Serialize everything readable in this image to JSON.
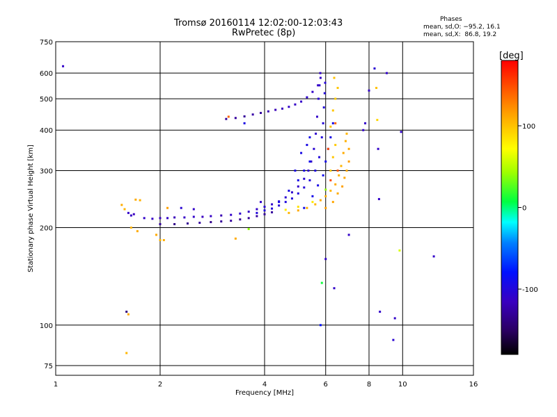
{
  "chart_data": {
    "type": "scatter",
    "title": "Tromsø 20160114 12:02:00-12:03:43",
    "subtitle": "RwPretec (8p)",
    "xlabel": "Frequency [MHz]",
    "ylabel": "Stationary phase Virtual Height [km]",
    "xscale": "log",
    "yscale": "log",
    "xlim": [
      1,
      16
    ],
    "ylim": [
      70,
      750
    ],
    "xticks": [
      1,
      2,
      4,
      6,
      8,
      10,
      16
    ],
    "xtick_labels": [
      "1",
      "2",
      "4",
      "6",
      "8",
      "10",
      "16"
    ],
    "yticks": [
      75,
      100,
      200,
      300,
      400,
      500,
      600,
      750
    ],
    "ytick_labels": [
      "75",
      "100",
      "200",
      "300",
      "400",
      "500",
      "600",
      "750"
    ],
    "grid": true,
    "info": {
      "heading": "Phases",
      "line_o": "mean, sd,O: −95.2, 16.1",
      "line_x": "mean, sd,X:  86.8, 19.2"
    },
    "colorbar": {
      "label": "[deg]",
      "range": [
        -180,
        180
      ],
      "ticks": [
        100,
        0,
        -100
      ],
      "tick_labels": [
        "100",
        "0",
        "-100"
      ]
    },
    "series": [
      {
        "points": [
          [
            1.8,
            214,
            -110
          ],
          [
            1.9,
            213,
            -112
          ],
          [
            2.0,
            214,
            -115
          ],
          [
            2.1,
            214,
            -110
          ],
          [
            2.2,
            215,
            -118
          ],
          [
            2.35,
            215,
            -112
          ],
          [
            2.5,
            216,
            -110
          ],
          [
            2.65,
            216,
            -115
          ],
          [
            2.8,
            217,
            -112
          ],
          [
            3.0,
            218,
            -120
          ],
          [
            3.2,
            219,
            -110
          ],
          [
            3.4,
            221,
            -108
          ],
          [
            3.6,
            224,
            -112
          ],
          [
            3.8,
            228,
            -110
          ],
          [
            4.0,
            232,
            -105
          ],
          [
            4.2,
            236,
            -108
          ],
          [
            4.4,
            241,
            -110
          ],
          [
            4.6,
            248,
            -105
          ],
          [
            4.8,
            257,
            -108
          ],
          [
            5.0,
            268,
            -110
          ],
          [
            5.2,
            283,
            -105
          ],
          [
            5.35,
            300,
            -108
          ],
          [
            5.45,
            320,
            -110
          ],
          [
            5.55,
            350,
            -105
          ],
          [
            5.62,
            390,
            -108
          ],
          [
            5.67,
            440,
            -110
          ],
          [
            5.72,
            500,
            -105
          ],
          [
            5.76,
            550,
            -108
          ],
          [
            5.79,
            600,
            -110
          ],
          [
            2.0,
            205,
            -130
          ],
          [
            2.2,
            205,
            -135
          ],
          [
            2.4,
            206,
            -132
          ],
          [
            2.6,
            207,
            -128
          ],
          [
            2.8,
            208,
            -135
          ],
          [
            3.0,
            209,
            -130
          ],
          [
            3.2,
            210,
            -128
          ],
          [
            3.4,
            212,
            -132
          ],
          [
            3.6,
            214,
            -130
          ],
          [
            3.8,
            217,
            -128
          ],
          [
            4.0,
            220,
            -130
          ],
          [
            4.2,
            223,
            -128
          ],
          [
            3.8,
            222,
            -100
          ],
          [
            4.0,
            226,
            -98
          ],
          [
            4.2,
            229,
            -100
          ],
          [
            4.4,
            234,
            -102
          ],
          [
            4.6,
            240,
            -98
          ],
          [
            4.8,
            246,
            -100
          ],
          [
            5.0,
            255,
            -100
          ],
          [
            5.2,
            266,
            -102
          ],
          [
            5.4,
            280,
            -100
          ],
          [
            5.6,
            300,
            -98
          ],
          [
            5.75,
            330,
            -100
          ],
          [
            5.85,
            380,
            -100
          ],
          [
            5.9,
            420,
            -102
          ],
          [
            5.93,
            470,
            -100
          ],
          [
            5.96,
            520,
            -100
          ],
          [
            5.98,
            560,
            -102
          ],
          [
            3.1,
            433,
            -130
          ],
          [
            3.3,
            436,
            -128
          ],
          [
            3.5,
            441,
            -130
          ],
          [
            3.7,
            447,
            -125
          ],
          [
            3.9,
            452,
            -128
          ],
          [
            4.1,
            457,
            -120
          ],
          [
            4.3,
            462,
            -118
          ],
          [
            4.5,
            466,
            -115
          ],
          [
            4.7,
            472,
            -110
          ],
          [
            4.9,
            480,
            -112
          ],
          [
            5.1,
            490,
            -110
          ],
          [
            5.3,
            505,
            -108
          ],
          [
            5.5,
            525,
            -110
          ],
          [
            5.7,
            550,
            -112
          ],
          [
            5.8,
            580,
            -110
          ],
          [
            4.4,
            240,
            -95
          ],
          [
            4.7,
            260,
            -95
          ],
          [
            5.0,
            280,
            -92
          ],
          [
            5.2,
            300,
            -95
          ],
          [
            5.4,
            320,
            -92
          ],
          [
            4.9,
            300,
            -96
          ],
          [
            5.1,
            340,
            -94
          ],
          [
            5.3,
            360,
            -95
          ],
          [
            5.4,
            380,
            -92
          ],
          [
            5.2,
            230,
            -90
          ],
          [
            5.5,
            250,
            -92
          ],
          [
            5.7,
            270,
            -94
          ],
          [
            5.9,
            290,
            -90
          ],
          [
            6.0,
            320,
            -92
          ],
          [
            6.1,
            350,
            -90
          ],
          [
            6.2,
            380,
            -94
          ],
          [
            6.3,
            420,
            -92
          ],
          [
            4.7,
            222,
            105
          ],
          [
            5.0,
            226,
            110
          ],
          [
            5.3,
            230,
            108
          ],
          [
            5.6,
            236,
            105
          ],
          [
            5.8,
            243,
            110
          ],
          [
            6.0,
            250,
            108
          ],
          [
            6.2,
            260,
            105
          ],
          [
            6.4,
            272,
            110
          ],
          [
            6.55,
            290,
            108
          ],
          [
            6.65,
            310,
            105
          ],
          [
            6.75,
            340,
            110
          ],
          [
            6.85,
            370,
            108
          ],
          [
            6.9,
            390,
            105
          ],
          [
            6.0,
            230,
            115
          ],
          [
            6.3,
            240,
            112
          ],
          [
            6.5,
            255,
            110
          ],
          [
            6.7,
            268,
            115
          ],
          [
            6.8,
            285,
            112
          ],
          [
            6.9,
            300,
            110
          ],
          [
            7.0,
            320,
            115
          ],
          [
            7.0,
            350,
            112
          ],
          [
            6.2,
            300,
            95
          ],
          [
            6.3,
            330,
            98
          ],
          [
            6.4,
            360,
            96
          ],
          [
            6.2,
            410,
            100
          ],
          [
            6.3,
            460,
            98
          ],
          [
            6.4,
            500,
            95
          ],
          [
            6.5,
            540,
            98
          ],
          [
            6.35,
            580,
            100
          ],
          [
            4.6,
            227,
            80
          ],
          [
            5.0,
            232,
            85
          ],
          [
            5.5,
            240,
            82
          ],
          [
            6.0,
            262,
            40
          ],
          [
            6.2,
            280,
            150
          ],
          [
            6.5,
            300,
            145
          ],
          [
            6.1,
            350,
            150
          ],
          [
            6.4,
            420,
            140
          ],
          [
            1.05,
            630,
            -110
          ],
          [
            1.55,
            235,
            110
          ],
          [
            1.58,
            228,
            105
          ],
          [
            1.62,
            222,
            -110
          ],
          [
            1.65,
            218,
            -112
          ],
          [
            1.68,
            220,
            -115
          ],
          [
            1.7,
            244,
            110
          ],
          [
            1.75,
            243,
            108
          ],
          [
            1.65,
            200,
            105
          ],
          [
            1.72,
            195,
            110
          ],
          [
            1.95,
            190,
            110
          ],
          [
            2.0,
            183,
            105
          ],
          [
            2.05,
            183,
            108
          ],
          [
            2.1,
            230,
            115
          ],
          [
            2.3,
            230,
            -105
          ],
          [
            2.5,
            228,
            -110
          ],
          [
            1.6,
            110,
            -140
          ],
          [
            1.62,
            108,
            110
          ],
          [
            1.6,
            82,
            105
          ],
          [
            3.15,
            440,
            140
          ],
          [
            3.5,
            420,
            -95
          ],
          [
            3.9,
            240,
            -110
          ],
          [
            3.3,
            185,
            110
          ],
          [
            3.6,
            198,
            40
          ],
          [
            5.8,
            100,
            -80
          ],
          [
            5.85,
            135,
            10
          ],
          [
            6.0,
            160,
            -110
          ],
          [
            6.35,
            130,
            -110
          ],
          [
            7.0,
            190,
            -110
          ],
          [
            7.8,
            420,
            -110
          ],
          [
            8.0,
            530,
            -110
          ],
          [
            8.3,
            620,
            -105
          ],
          [
            8.4,
            540,
            100
          ],
          [
            8.45,
            430,
            90
          ],
          [
            8.5,
            350,
            -110
          ],
          [
            8.55,
            245,
            -110
          ],
          [
            8.6,
            110,
            -110
          ],
          [
            9.5,
            105,
            -110
          ],
          [
            9.4,
            90,
            -105
          ],
          [
            9.8,
            170,
            60
          ],
          [
            9.9,
            395,
            -110
          ],
          [
            12.3,
            163,
            -110
          ],
          [
            9.0,
            600,
            -110
          ],
          [
            7.7,
            400,
            -110
          ]
        ]
      }
    ]
  }
}
